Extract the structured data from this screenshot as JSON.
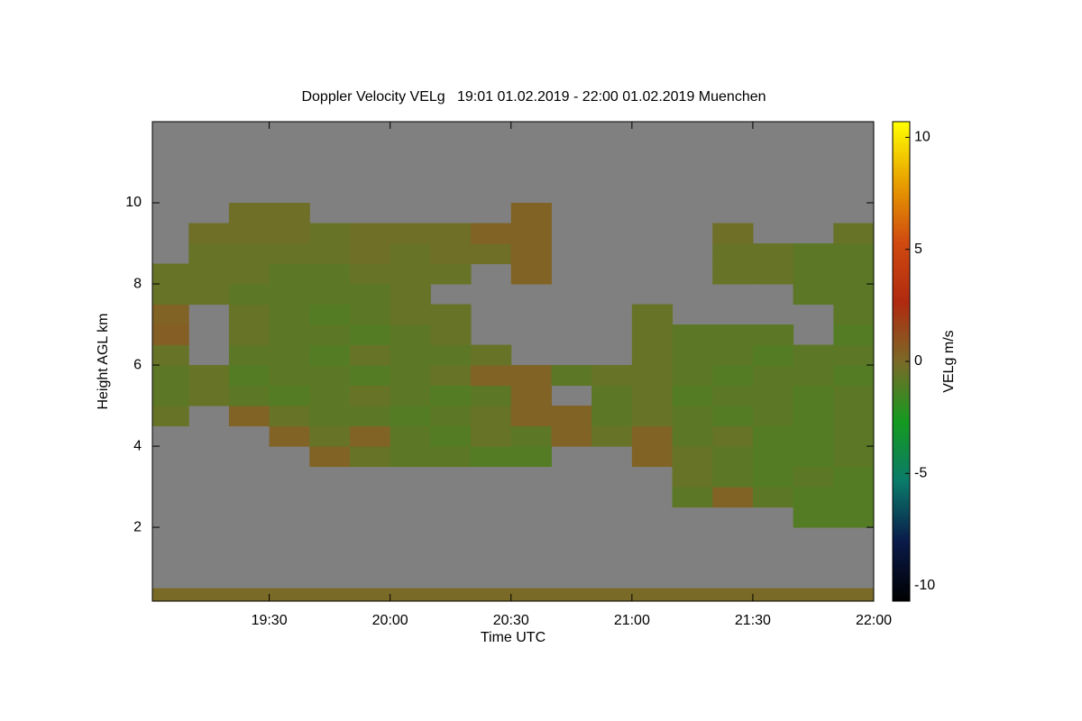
{
  "chart_data": {
    "type": "heatmap",
    "title": "Doppler Velocity VELg   19:01 01.02.2019 - 22:00 01.02.2019 Muenchen",
    "x_label": "Time UTC",
    "y_label": "Height AGL km",
    "colorbar_label": "VELg m/s",
    "xlim": [
      19.0167,
      22.0
    ],
    "ylim": [
      0.18,
      12.0
    ],
    "zlim": [
      -10.7,
      10.7
    ],
    "xticks": [
      {
        "value": 19.5,
        "label": "19:30"
      },
      {
        "value": 20.0,
        "label": "20:00"
      },
      {
        "value": 20.5,
        "label": "20:30"
      },
      {
        "value": 21.0,
        "label": "21:00"
      },
      {
        "value": 21.5,
        "label": "21:30"
      },
      {
        "value": 22.0,
        "label": "22:00"
      }
    ],
    "yticks": [
      2,
      4,
      6,
      8,
      10
    ],
    "zticks": [
      -10,
      -5,
      0,
      5,
      10
    ],
    "background": "#808080",
    "colormap": [
      "#000000",
      "#0a1a4a",
      "#0a7a6a",
      "#159a20",
      "#7a6a28",
      "#b02a10",
      "#d04a10",
      "#e8a000",
      "#ffff00"
    ],
    "x_edges": [
      19.0,
      19.1667,
      19.3333,
      19.5,
      19.6667,
      19.8333,
      20.0,
      20.1667,
      20.3333,
      20.5,
      20.6667,
      20.8333,
      21.0,
      21.1667,
      21.3333,
      21.5,
      21.6667,
      21.8333,
      22.0
    ],
    "y_edges": [
      0.2,
      0.5,
      1.0,
      1.5,
      2.0,
      2.5,
      3.0,
      3.5,
      4.0,
      4.5,
      5.0,
      5.5,
      6.0,
      6.5,
      7.0,
      7.5,
      8.0,
      8.5,
      9.0,
      9.5,
      10.0
    ],
    "z": [
      [
        0,
        0,
        0,
        0,
        0,
        0,
        0,
        0,
        0,
        0,
        0,
        0,
        0,
        0,
        0,
        0,
        0,
        0
      ],
      [
        null,
        null,
        null,
        null,
        null,
        null,
        null,
        null,
        null,
        null,
        null,
        null,
        null,
        null,
        null,
        null,
        null,
        null
      ],
      [
        null,
        null,
        null,
        null,
        null,
        null,
        null,
        null,
        null,
        null,
        null,
        null,
        null,
        null,
        null,
        null,
        null,
        null
      ],
      [
        null,
        null,
        null,
        null,
        null,
        null,
        null,
        null,
        null,
        null,
        null,
        null,
        null,
        null,
        null,
        null,
        null,
        null
      ],
      [
        null,
        null,
        null,
        null,
        null,
        null,
        null,
        null,
        null,
        null,
        null,
        null,
        null,
        null,
        null,
        null,
        -1,
        -1
      ],
      [
        null,
        null,
        null,
        null,
        null,
        null,
        null,
        null,
        null,
        null,
        null,
        null,
        null,
        -0.8,
        0.3,
        -0.8,
        -1,
        -1
      ],
      [
        null,
        null,
        null,
        null,
        null,
        null,
        null,
        null,
        null,
        null,
        null,
        null,
        null,
        -0.5,
        -0.8,
        -1,
        -0.8,
        -1
      ],
      [
        null,
        null,
        null,
        null,
        0.3,
        -0.5,
        -0.8,
        -0.8,
        -1,
        -1,
        null,
        null,
        0.3,
        -0.5,
        -0.8,
        -1,
        -1,
        -0.8
      ],
      [
        null,
        null,
        null,
        0.3,
        -0.5,
        0.3,
        -0.8,
        -1,
        -0.5,
        -0.8,
        0.3,
        -0.5,
        0.3,
        -0.8,
        -0.5,
        -1,
        -1,
        -0.8
      ],
      [
        -0.5,
        null,
        0.3,
        -0.5,
        -0.8,
        -0.8,
        -1,
        -0.8,
        -0.5,
        0.3,
        0.3,
        -0.8,
        -0.5,
        -0.8,
        -1,
        -0.8,
        -1,
        -0.8
      ],
      [
        -0.8,
        -0.5,
        -0.8,
        -1,
        -0.8,
        -0.5,
        -0.8,
        -1,
        -0.8,
        0.3,
        null,
        -0.8,
        -0.5,
        -1,
        -0.8,
        -0.8,
        -1,
        -0.8
      ],
      [
        -0.8,
        -0.5,
        -1,
        -0.8,
        -0.8,
        -1,
        -0.8,
        -0.5,
        0.3,
        0.3,
        -0.8,
        -0.5,
        -0.5,
        -0.8,
        -1,
        -0.8,
        -0.8,
        -1
      ],
      [
        -0.5,
        null,
        -0.8,
        -0.8,
        -1,
        -0.5,
        -0.8,
        -0.8,
        -0.5,
        null,
        null,
        null,
        -0.5,
        -0.8,
        -0.8,
        -1,
        -0.8,
        -0.8
      ],
      [
        0.5,
        null,
        -0.5,
        -0.8,
        -0.8,
        -1,
        -0.8,
        -0.5,
        null,
        null,
        null,
        null,
        -0.5,
        -0.8,
        -0.8,
        -0.8,
        null,
        -1
      ],
      [
        0.3,
        null,
        -0.5,
        -0.8,
        -1,
        -0.8,
        -0.5,
        -0.5,
        null,
        null,
        null,
        null,
        -0.5,
        null,
        null,
        null,
        null,
        -0.8
      ],
      [
        -0.5,
        -0.5,
        -0.8,
        -0.8,
        -0.8,
        -0.8,
        -0.5,
        null,
        null,
        null,
        null,
        null,
        null,
        null,
        null,
        null,
        -0.8,
        -0.8
      ],
      [
        -0.5,
        -0.5,
        -0.5,
        -0.8,
        -0.8,
        -0.5,
        -0.5,
        -0.5,
        null,
        0.3,
        null,
        null,
        null,
        null,
        -0.5,
        -0.5,
        -0.8,
        -0.8
      ],
      [
        null,
        -0.5,
        -0.5,
        -0.5,
        -0.5,
        -0.3,
        -0.5,
        -0.3,
        -0.3,
        0.3,
        null,
        null,
        null,
        null,
        -0.5,
        -0.5,
        -0.8,
        -0.8
      ],
      [
        null,
        -0.3,
        -0.3,
        -0.3,
        -0.5,
        -0.3,
        -0.3,
        -0.3,
        0.3,
        0.3,
        null,
        null,
        null,
        null,
        -0.3,
        null,
        null,
        -0.5
      ],
      [
        null,
        null,
        -0.3,
        -0.3,
        null,
        null,
        null,
        null,
        null,
        0.3,
        null,
        null,
        null,
        null,
        null,
        null,
        null,
        null
      ]
    ]
  }
}
